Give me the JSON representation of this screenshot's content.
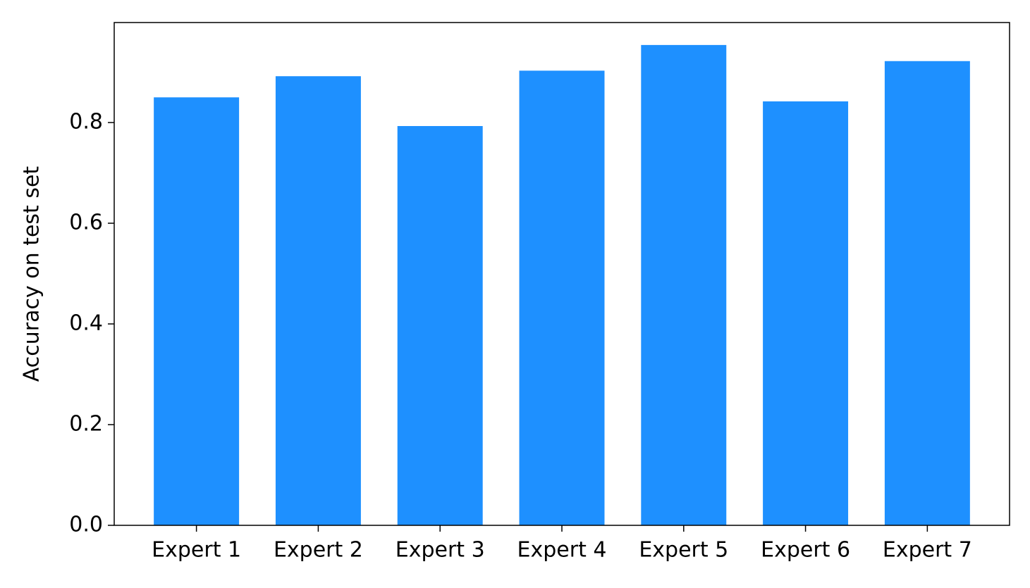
{
  "chart_data": {
    "type": "bar",
    "y_label": "Accuracy on test set",
    "categories": [
      "Expert 1",
      "Expert 2",
      "Expert 3",
      "Expert 4",
      "Expert 5",
      "Expert 6",
      "Expert 7"
    ],
    "values": [
      0.85,
      0.892,
      0.793,
      0.903,
      0.954,
      0.842,
      0.922
    ],
    "color": "#1e90ff",
    "ylim": [
      0,
      0.9986
    ],
    "yticks": [
      {
        "value": 0,
        "label": "0.0"
      },
      0.2,
      0.4,
      0.6,
      0.8
    ],
    "grid": false
  }
}
